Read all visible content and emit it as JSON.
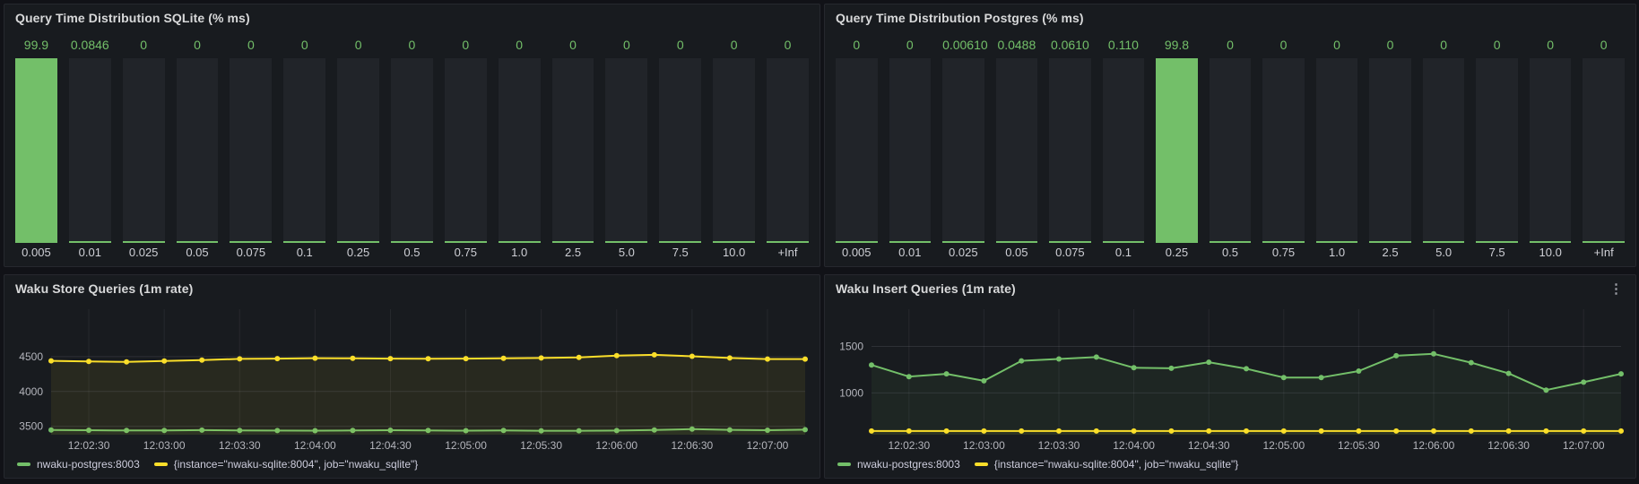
{
  "colors": {
    "page_background": "#111217",
    "panel_background": "#181b1f",
    "panel_border": "#26282e",
    "green_series": "#73bf69",
    "yellow_series": "#fade2a",
    "bar_track": "#212429",
    "title_text": "#d8d9da",
    "axis_text": "#b4b5bc",
    "bucket_label_text": "#cfd0d6"
  },
  "icons": {
    "kebab_glyph": "⋮",
    "panel_menu": "kebab-menu-icon"
  },
  "chart_data": [
    {
      "id": "sqlite-histogram",
      "type": "bar",
      "title": "Query Time Distribution SQLite (% ms)",
      "categories": [
        "0.005",
        "0.01",
        "0.025",
        "0.05",
        "0.075",
        "0.1",
        "0.25",
        "0.5",
        "0.75",
        "1.0",
        "2.5",
        "5.0",
        "7.5",
        "10.0",
        "+Inf"
      ],
      "values": [
        99.9,
        0.0846,
        0,
        0,
        0,
        0,
        0,
        0,
        0,
        0,
        0,
        0,
        0,
        0,
        0
      ],
      "value_labels": [
        "99.9",
        "0.0846",
        "0",
        "0",
        "0",
        "0",
        "0",
        "0",
        "0",
        "0",
        "0",
        "0",
        "0",
        "0",
        "0"
      ],
      "ylim": [
        0,
        100
      ],
      "bar_color": "#73bf69",
      "orientation": "vertical",
      "grid": false
    },
    {
      "id": "postgres-histogram",
      "type": "bar",
      "title": "Query Time Distribution Postgres (% ms)",
      "categories": [
        "0.005",
        "0.01",
        "0.025",
        "0.05",
        "0.075",
        "0.1",
        "0.25",
        "0.5",
        "0.75",
        "1.0",
        "2.5",
        "5.0",
        "7.5",
        "10.0",
        "+Inf"
      ],
      "values": [
        0,
        0,
        0.0061,
        0.0488,
        0.061,
        0.11,
        99.8,
        0,
        0,
        0,
        0,
        0,
        0,
        0,
        0
      ],
      "value_labels": [
        "0",
        "0",
        "0.00610",
        "0.0488",
        "0.0610",
        "0.110",
        "99.8",
        "0",
        "0",
        "0",
        "0",
        "0",
        "0",
        "0",
        "0"
      ],
      "ylim": [
        0,
        100
      ],
      "bar_color": "#73bf69",
      "orientation": "vertical",
      "grid": false
    },
    {
      "id": "store-queries",
      "type": "line",
      "title": "Waku Store Queries (1m rate)",
      "x": [
        "12:02:15",
        "12:02:30",
        "12:02:45",
        "12:03:00",
        "12:03:15",
        "12:03:30",
        "12:03:45",
        "12:04:00",
        "12:04:15",
        "12:04:30",
        "12:04:45",
        "12:05:00",
        "12:05:15",
        "12:05:30",
        "12:05:45",
        "12:06:00",
        "12:06:15",
        "12:06:30",
        "12:06:45",
        "12:07:00",
        "12:07:15"
      ],
      "x_tick_labels": [
        "12:02:30",
        "12:03:00",
        "12:03:30",
        "12:04:00",
        "12:04:30",
        "12:05:00",
        "12:05:30",
        "12:06:00",
        "12:06:30",
        "12:07:00"
      ],
      "series": [
        {
          "name": "nwaku-postgres:8003",
          "color": "#73bf69",
          "values": [
            3448,
            3444,
            3440,
            3441,
            3445,
            3441,
            3439,
            3438,
            3440,
            3444,
            3440,
            3438,
            3440,
            3437,
            3436,
            3439,
            3447,
            3460,
            3450,
            3444,
            3452
          ]
        },
        {
          "name": "{instance=\"nwaku-sqlite:8004\", job=\"nwaku_sqlite\"}",
          "color": "#fade2a",
          "values": [
            4440,
            4430,
            4425,
            4438,
            4450,
            4468,
            4472,
            4478,
            4475,
            4472,
            4470,
            4472,
            4475,
            4480,
            4490,
            4515,
            4525,
            4505,
            4480,
            4465,
            4465
          ]
        }
      ],
      "y_ticks": [
        3500,
        4000,
        4500
      ],
      "ylim": [
        3380,
        5180
      ],
      "grid": true,
      "legend_position": "bottom"
    },
    {
      "id": "insert-queries",
      "type": "line",
      "title": "Waku Insert Queries (1m rate)",
      "x": [
        "12:02:15",
        "12:02:30",
        "12:02:45",
        "12:03:00",
        "12:03:15",
        "12:03:30",
        "12:03:45",
        "12:04:00",
        "12:04:15",
        "12:04:30",
        "12:04:45",
        "12:05:00",
        "12:05:15",
        "12:05:30",
        "12:05:45",
        "12:06:00",
        "12:06:15",
        "12:06:30",
        "12:06:45",
        "12:07:00",
        "12:07:15"
      ],
      "x_tick_labels": [
        "12:02:30",
        "12:03:00",
        "12:03:30",
        "12:04:00",
        "12:04:30",
        "12:05:00",
        "12:05:30",
        "12:06:00",
        "12:06:30",
        "12:07:00"
      ],
      "series": [
        {
          "name": "nwaku-postgres:8003",
          "color": "#73bf69",
          "values": [
            1300,
            1175,
            1205,
            1130,
            1345,
            1365,
            1385,
            1270,
            1265,
            1330,
            1260,
            1165,
            1165,
            1235,
            1400,
            1420,
            1325,
            1210,
            1030,
            1115,
            1205
          ]
        },
        {
          "name": "{instance=\"nwaku-sqlite:8004\", job=\"nwaku_sqlite\"}",
          "color": "#fade2a",
          "values": [
            590,
            590,
            590,
            590,
            590,
            590,
            590,
            590,
            590,
            590,
            590,
            590,
            590,
            590,
            590,
            590,
            590,
            590,
            590,
            590,
            590
          ]
        }
      ],
      "y_ticks": [
        1000,
        1500
      ],
      "ylim": [
        550,
        1900
      ],
      "grid": true,
      "legend_position": "bottom"
    }
  ]
}
